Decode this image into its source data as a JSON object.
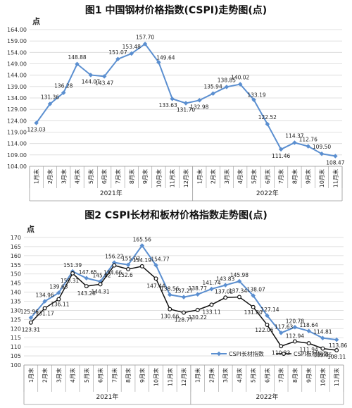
{
  "chart_data": [
    {
      "type": "line",
      "title": "图1  中国钢材价格指数(CSPI)走势图(点)",
      "ylabel": "点",
      "ylim": [
        104,
        164
      ],
      "yticks": [
        "104.00",
        "109.00",
        "114.00",
        "119.00",
        "124.00",
        "129.00",
        "134.00",
        "139.00",
        "144.00",
        "149.00",
        "154.00",
        "159.00",
        "164.00"
      ],
      "categories": [
        "1月末",
        "2月末",
        "3月末",
        "4月末",
        "5月末",
        "6月末",
        "7月末",
        "8月末",
        "9月末",
        "10月末",
        "11月末",
        "12月末",
        "1月末",
        "2月末",
        "3月末",
        "4月末",
        "5月末",
        "6月末",
        "7月末",
        "8月末",
        "9月末",
        "10月末",
        "11月末"
      ],
      "year_groups": [
        {
          "label": "2021年",
          "count": 12
        },
        {
          "label": "2022年",
          "count": 11
        }
      ],
      "series": [
        {
          "values": [
            123.03,
            131.36,
            136.28,
            148.88,
            144.07,
            143.47,
            151.07,
            153.48,
            157.7,
            149.64,
            133.63,
            131.7,
            132.98,
            135.94,
            138.85,
            140.02,
            133.19,
            122.52,
            111.46,
            114.37,
            112.76,
            109.5,
            108.47
          ],
          "labels": [
            "123.03",
            "131.36",
            "136.28",
            "148.88",
            "144.07",
            "143.47",
            "151.07",
            "153.48",
            "157.70",
            "149.64",
            "133.63",
            "131.70",
            "132.98",
            "135.94",
            "138.85",
            "140.02",
            "133.19",
            "122.52",
            "111.46",
            "114.37",
            "112.76",
            "109.50",
            "108.47"
          ],
          "color": "#5b8fd0"
        }
      ]
    },
    {
      "type": "line",
      "title": "图2  CSPI长材和板材价格指数走势图(点)",
      "ylabel": "点",
      "ylim": [
        100,
        170
      ],
      "yticks": [
        "100",
        "105",
        "110",
        "115",
        "120",
        "125",
        "130",
        "135",
        "140",
        "145",
        "150",
        "155",
        "160",
        "165",
        "170"
      ],
      "categories": [
        "1月末",
        "2月末",
        "3月末",
        "4月末",
        "5月末",
        "6月末",
        "7月末",
        "8月末",
        "9月末",
        "10月末",
        "11月末",
        "12月末",
        "1月末",
        "2月末",
        "3月末",
        "4月末",
        "5月末",
        "6月末",
        "7月末",
        "8月末",
        "9月末",
        "10月末",
        "11月末"
      ],
      "year_groups": [
        {
          "label": "2021年",
          "count": 12
        },
        {
          "label": "2022年",
          "count": 11
        }
      ],
      "legend_position": "bottom-right",
      "series": [
        {
          "name": "CSPI长材指数",
          "color": "#5b8fd0",
          "values": [
            125.96,
            134.96,
            139.63,
            151.39,
            147.65,
            145.82,
            156.22,
            155.03,
            165.56,
            154.77,
            138.56,
            137.27,
            138.77,
            141.74,
            143.83,
            145.98,
            138.07,
            127.14,
            117.63,
            120.78,
            118.64,
            114.81,
            113.86
          ],
          "labels": [
            "125.96",
            "134.96",
            "139.63",
            "151.39",
            "147.65",
            "145.82",
            "156.22",
            "155.03",
            "165.56",
            "154.77",
            "138.56",
            "137.27",
            "138.77",
            "141.74",
            "143.83",
            "145.98",
            "138.07",
            "127.14",
            "117.63",
            "120.78",
            "118.64",
            "114.81",
            "113.86"
          ]
        },
        {
          "name": "CSPI板材指数",
          "color": "#111111",
          "values": [
            123.31,
            131.17,
            136.11,
            150.31,
            143.28,
            144.31,
            154.66,
            152.6,
            154.19,
            147.44,
            130.66,
            128.77,
            130.22,
            133.11,
            137.02,
            137.34,
            131.8,
            122.06,
            110.33,
            112.94,
            111.94,
            109.05,
            108.11
          ],
          "labels": [
            "123.31",
            "131.17",
            "136.11",
            "150.31",
            "143.28",
            "144.31",
            "154.66",
            "152.6",
            "154.19",
            "147.44",
            "130.66",
            "128.77",
            "130.22",
            "133.11",
            "137.02",
            "137.34",
            "131.80",
            "122.06",
            "110.33",
            "112.94",
            "111.94",
            "109.05",
            "108.11"
          ]
        }
      ]
    }
  ]
}
